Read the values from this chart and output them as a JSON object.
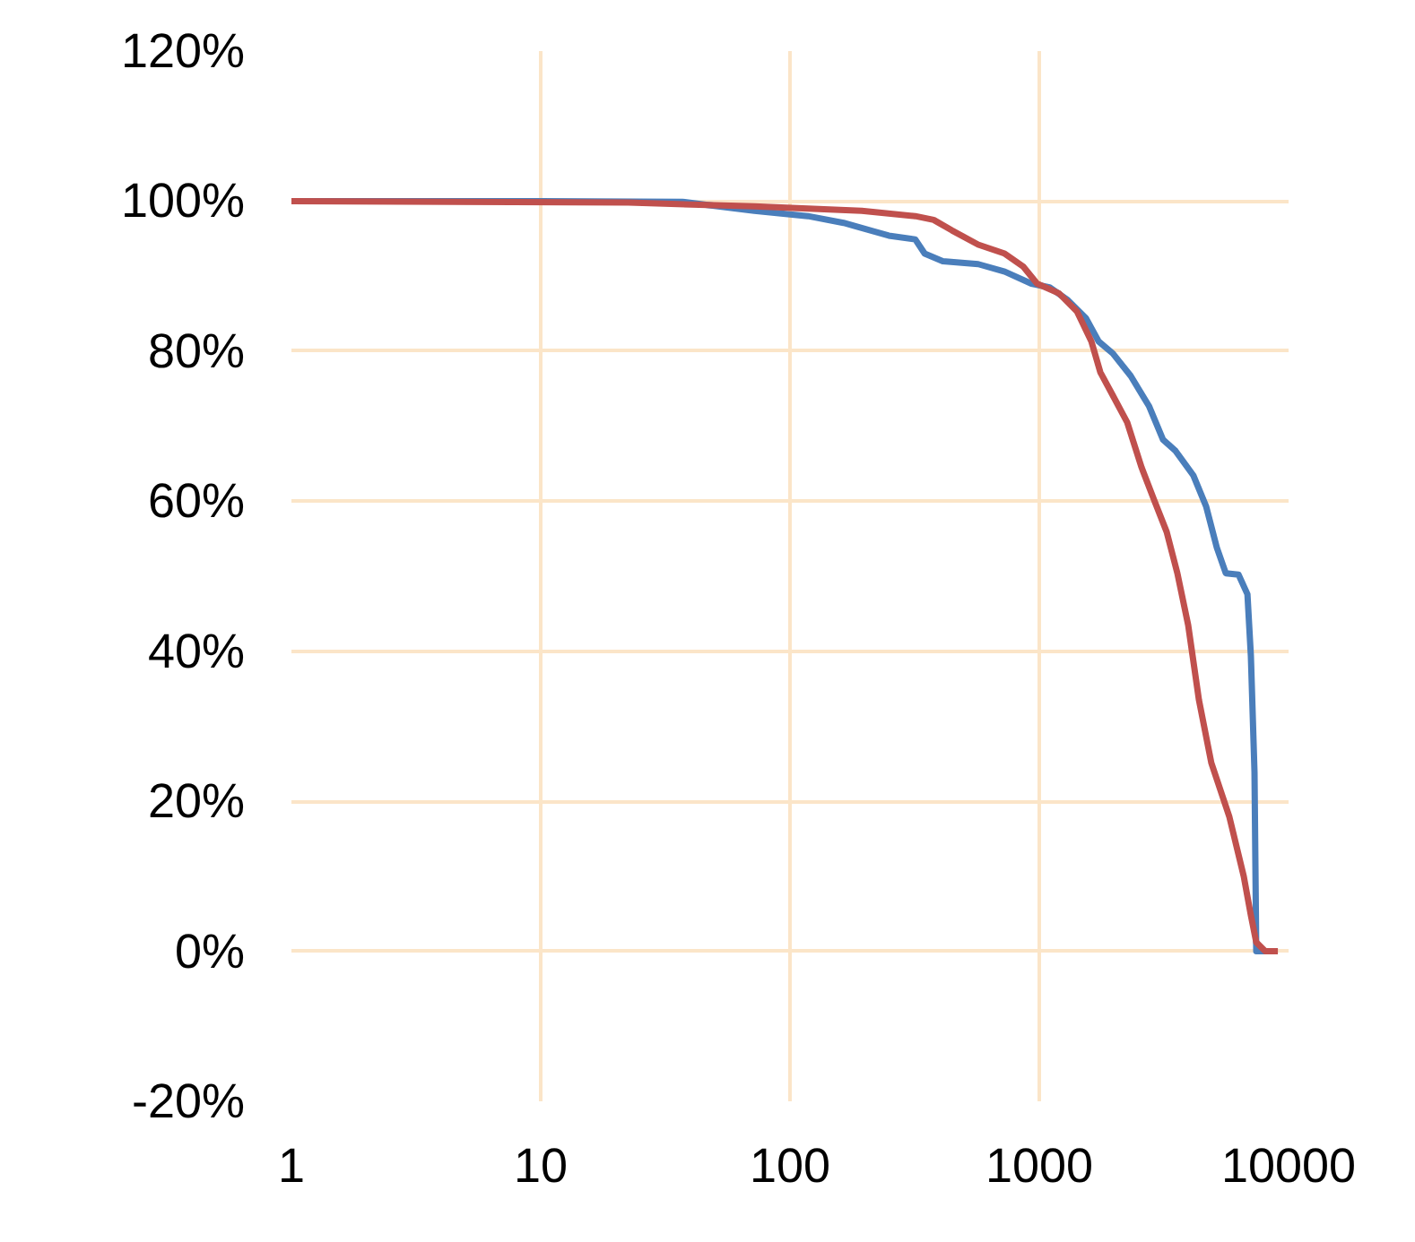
{
  "chart_data": {
    "type": "line",
    "log": "x",
    "grid": true,
    "marker": "none",
    "line_style": "solid",
    "xlim": [
      1,
      10000
    ],
    "xticks": [
      1,
      10,
      100,
      1000,
      10000
    ],
    "ylim": [
      -20,
      120
    ],
    "yticks": [
      {
        "value": -20,
        "label": "-20%"
      },
      {
        "value": 0,
        "label": "0%"
      },
      {
        "value": 20,
        "label": "20%"
      },
      {
        "value": 40,
        "label": "40%"
      },
      {
        "value": 60,
        "label": "60%"
      },
      {
        "value": 80,
        "label": "80%"
      },
      {
        "value": 100,
        "label": "100%"
      },
      {
        "value": 120,
        "label": "120%"
      }
    ],
    "series": [
      {
        "color": "#4a7ebb",
        "x": [
          1,
          10,
          37,
          72,
          118,
          164,
          249,
          318,
          347,
          410,
          569,
          727,
          929,
          1100,
          1302,
          1538,
          1730,
          1972,
          2327,
          2753,
          3136,
          3521,
          4155,
          4670,
          5155,
          5600,
          6300,
          6840,
          7060,
          7300,
          7420,
          8060
        ],
        "values": [
          100,
          100,
          99.9,
          98.7,
          98,
          97.1,
          95.4,
          94.9,
          93,
          92,
          91.6,
          90.6,
          89,
          88.5,
          86.8,
          84.4,
          81.3,
          79.7,
          76.7,
          72.7,
          68.2,
          66.7,
          63.4,
          59.3,
          53.8,
          50.4,
          50.2,
          47.6,
          39.4,
          23.9,
          0,
          0
        ]
      },
      {
        "color": "#c0504d",
        "x": [
          1,
          22.5,
          72,
          194,
          318,
          377,
          446,
          569,
          727,
          861,
          980,
          1200,
          1416,
          1618,
          1757,
          1972,
          2253,
          2572,
          2884,
          3244,
          3580,
          3956,
          4370,
          4900,
          5790,
          6610,
          7060,
          7420,
          8060,
          9060
        ],
        "values": [
          100,
          99.8,
          99.3,
          98.7,
          98,
          97.5,
          96.1,
          94.2,
          93,
          91.3,
          89,
          87.7,
          85.3,
          81.3,
          77.2,
          74.1,
          70.5,
          64.5,
          60.2,
          55.9,
          50.4,
          43.5,
          33.5,
          25.1,
          17.9,
          10,
          4.8,
          1.2,
          0,
          0
        ]
      }
    ]
  }
}
